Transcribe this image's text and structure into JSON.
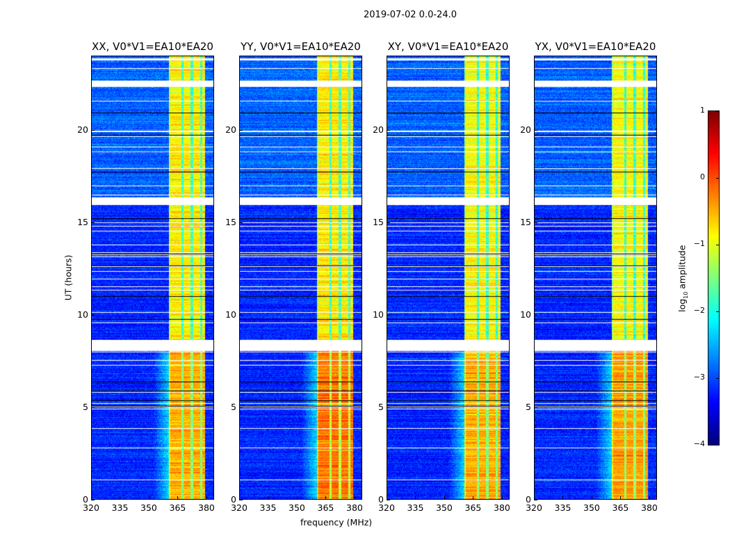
{
  "chart_data": {
    "type": "heatmap",
    "title": "2019-07-02 0.0-24.0",
    "xlabel": "frequency (MHz)",
    "ylabel": "UT (hours)",
    "xlim": [
      320,
      384
    ],
    "ylim": [
      0,
      24
    ],
    "xticks": [
      "320",
      "335",
      "350",
      "365",
      "380"
    ],
    "xtick_values": [
      320,
      335,
      350,
      365,
      380
    ],
    "yticks": [
      "0",
      "5",
      "10",
      "15",
      "20"
    ],
    "ytick_values": [
      0,
      5,
      10,
      15,
      20
    ],
    "panels": [
      {
        "title": "XX, V0*V1=EA10*EA20",
        "band_level_early": -0.5,
        "band_level_late": -0.8
      },
      {
        "title": "YY, V0*V1=EA10*EA20",
        "band_level_early": -0.2,
        "band_level_late": -0.8
      },
      {
        "title": "XY, V0*V1=EA10*EA20",
        "band_level_early": -0.5,
        "band_level_late": -0.9
      },
      {
        "title": "YX, V0*V1=EA10*EA20",
        "band_level_early": -0.4,
        "band_level_late": -0.9
      }
    ],
    "background_level": -3.2,
    "bright_band_MHz": [
      360.5,
      379.5
    ],
    "dim_channels_MHz": [
      367.5,
      372.5,
      377.5
    ],
    "flagged_gaps_hours": [
      [
        8.1,
        8.7
      ],
      [
        16.0,
        16.4
      ],
      [
        22.4,
        22.7
      ]
    ],
    "colorbar": {
      "label": "log10 amplitude",
      "label_main": "log",
      "label_sub": "10",
      "label_rest": " amplitude",
      "colormap": "jet",
      "range": [
        -4,
        1
      ],
      "ticks": [
        "1",
        "0",
        "−1",
        "−2",
        "−3",
        "−4"
      ],
      "tick_values": [
        1,
        0,
        -1,
        -2,
        -3,
        -4
      ]
    }
  }
}
